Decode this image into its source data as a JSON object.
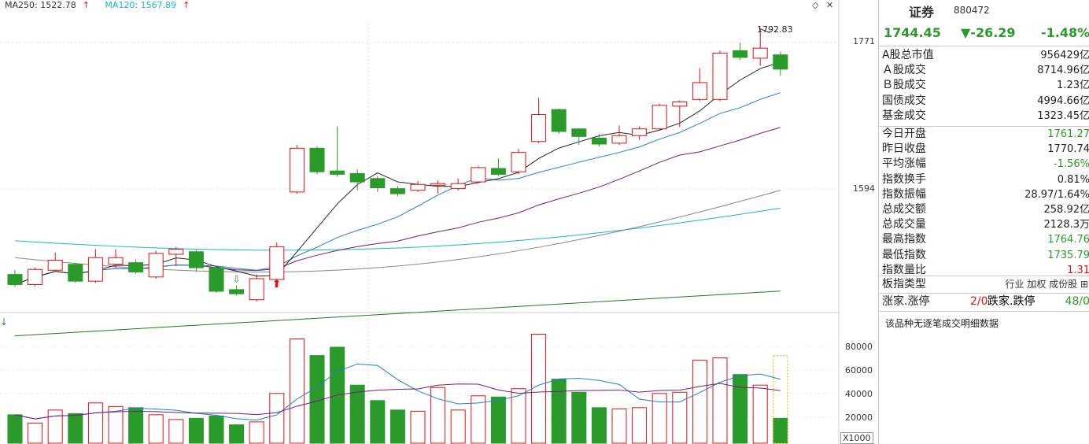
{
  "legend": {
    "ma250_label": "MA250: 1522.78",
    "ma120_label": "MA120: 1567.89",
    "up_arrow": "↑"
  },
  "top_icons": [
    "◇",
    "✕"
  ],
  "axis": {
    "price_ticks": [
      "1771",
      "1594"
    ],
    "volume_ticks": [
      "80000",
      "60000",
      "40000",
      "20000"
    ],
    "volume_unit": "X1000",
    "high_label": "1792.83"
  },
  "header": {
    "name": "证券",
    "code": "880472",
    "price": "1744.45",
    "change": "▼-26.29",
    "change_pct": "-1.48%"
  },
  "stats": [
    {
      "label": "A股总市值",
      "value": "956429亿",
      "color": "black"
    },
    {
      "label": "Ａ股成交",
      "value": "8714.96亿",
      "color": "black"
    },
    {
      "label": "Ｂ股成交",
      "value": "1.23亿",
      "color": "black"
    },
    {
      "label": "国债成交",
      "value": "4994.66亿",
      "color": "black"
    },
    {
      "label": "基金成交",
      "value": "1323.45亿",
      "color": "black"
    },
    {
      "label": "今日开盘",
      "value": "1761.27",
      "color": "green"
    },
    {
      "label": "昨日收盘",
      "value": "1770.74",
      "color": "black"
    },
    {
      "label": "平均涨幅",
      "value": "-1.56%",
      "color": "green"
    },
    {
      "label": "指数换手",
      "value": "0.81%",
      "color": "black"
    },
    {
      "label": "指数振幅",
      "value": "28.97/1.64%",
      "color": "black"
    },
    {
      "label": "总成交额",
      "value": "258.92亿",
      "color": "black"
    },
    {
      "label": "总成交量",
      "value": "2128.3万",
      "color": "black"
    },
    {
      "label": "最高指数",
      "value": "1764.76",
      "color": "green"
    },
    {
      "label": "最低指数",
      "value": "1735.79",
      "color": "green"
    },
    {
      "label": "指数量比",
      "value": "1.31",
      "color": "red"
    }
  ],
  "type_row": {
    "label": "板指类型",
    "options": "行业 加权 成份股 ⊞"
  },
  "breadth": {
    "up_label": "涨家.涨停",
    "up_value": "2/0",
    "down_label": "跌家.跌停",
    "down_value": "48/0"
  },
  "note": "该品种无逐笔成交明细数据",
  "colors": {
    "up": "#e01010",
    "down": "#2a9a2a",
    "ma5": "#222222",
    "ma10": "#1e7fd0",
    "ma20": "#7a1a7a",
    "ma60": "#1ab6c6",
    "ma120_line": "#888888",
    "ma250_line": "#1e7a1e"
  },
  "chart_data": {
    "type": "candlestick",
    "ylim": [
      1480,
      1800
    ],
    "candles": [
      {
        "o": 1500,
        "c": 1488,
        "h": 1505,
        "l": 1485
      },
      {
        "o": 1488,
        "c": 1506,
        "h": 1508,
        "l": 1486
      },
      {
        "o": 1505,
        "c": 1517,
        "h": 1526,
        "l": 1503
      },
      {
        "o": 1512,
        "c": 1492,
        "h": 1514,
        "l": 1490
      },
      {
        "o": 1492,
        "c": 1520,
        "h": 1530,
        "l": 1490
      },
      {
        "o": 1512,
        "c": 1520,
        "h": 1530,
        "l": 1508
      },
      {
        "o": 1514,
        "c": 1503,
        "h": 1518,
        "l": 1501
      },
      {
        "o": 1497,
        "c": 1525,
        "h": 1528,
        "l": 1495
      },
      {
        "o": 1524,
        "c": 1530,
        "h": 1533,
        "l": 1510
      },
      {
        "o": 1527,
        "c": 1508,
        "h": 1529,
        "l": 1503
      },
      {
        "o": 1508,
        "c": 1480,
        "h": 1510,
        "l": 1478
      },
      {
        "o": 1482,
        "c": 1477,
        "h": 1487,
        "l": 1475
      },
      {
        "o": 1470,
        "c": 1495,
        "h": 1500,
        "l": 1468
      },
      {
        "o": 1494,
        "c": 1533,
        "h": 1538,
        "l": 1492
      },
      {
        "o": 1598,
        "c": 1650,
        "h": 1654,
        "l": 1596
      },
      {
        "o": 1650,
        "c": 1622,
        "h": 1652,
        "l": 1619
      },
      {
        "o": 1623,
        "c": 1619,
        "h": 1676,
        "l": 1616
      },
      {
        "o": 1620,
        "c": 1610,
        "h": 1625,
        "l": 1600
      },
      {
        "o": 1614,
        "c": 1603,
        "h": 1617,
        "l": 1598
      },
      {
        "o": 1602,
        "c": 1596,
        "h": 1605,
        "l": 1593
      },
      {
        "o": 1600,
        "c": 1607,
        "h": 1611,
        "l": 1598
      },
      {
        "o": 1606,
        "c": 1608,
        "h": 1612,
        "l": 1596
      },
      {
        "o": 1602,
        "c": 1608,
        "h": 1614,
        "l": 1600
      },
      {
        "o": 1610,
        "c": 1627,
        "h": 1629,
        "l": 1608
      },
      {
        "o": 1626,
        "c": 1619,
        "h": 1638,
        "l": 1617
      },
      {
        "o": 1622,
        "c": 1645,
        "h": 1649,
        "l": 1619
      },
      {
        "o": 1658,
        "c": 1690,
        "h": 1710,
        "l": 1656
      },
      {
        "o": 1696,
        "c": 1670,
        "h": 1697,
        "l": 1667
      },
      {
        "o": 1673,
        "c": 1664,
        "h": 1674,
        "l": 1654
      },
      {
        "o": 1662,
        "c": 1655,
        "h": 1667,
        "l": 1652
      },
      {
        "o": 1656,
        "c": 1665,
        "h": 1677,
        "l": 1654
      },
      {
        "o": 1665,
        "c": 1673,
        "h": 1676,
        "l": 1660
      },
      {
        "o": 1673,
        "c": 1701,
        "h": 1703,
        "l": 1671
      },
      {
        "o": 1700,
        "c": 1705,
        "h": 1707,
        "l": 1675
      },
      {
        "o": 1708,
        "c": 1728,
        "h": 1745,
        "l": 1706
      },
      {
        "o": 1708,
        "c": 1763,
        "h": 1766,
        "l": 1706
      },
      {
        "o": 1766,
        "c": 1758,
        "h": 1775,
        "l": 1755
      },
      {
        "o": 1757,
        "c": 1769,
        "h": 1792,
        "l": 1748
      },
      {
        "o": 1761,
        "c": 1744,
        "h": 1765,
        "l": 1736
      }
    ],
    "volumes": [
      24000,
      17000,
      28000,
      25000,
      34000,
      31000,
      30000,
      24000,
      20000,
      21000,
      23000,
      15500,
      18000,
      42000,
      88000,
      74000,
      81000,
      49000,
      36000,
      28000,
      27000,
      47000,
      28000,
      40000,
      39000,
      46000,
      92000,
      54000,
      43000,
      30000,
      29000,
      30000,
      42000,
      43000,
      70000,
      72000,
      58000,
      49000,
      21000
    ],
    "volume_ylim": [
      0,
      95000
    ]
  }
}
